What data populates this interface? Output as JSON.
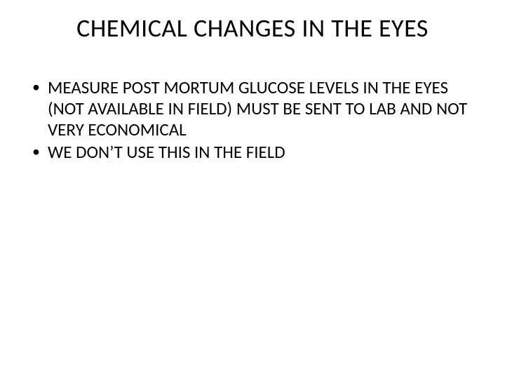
{
  "slide": {
    "title": "CHEMICAL CHANGES IN THE EYES",
    "bullets": [
      "MEASURE POST MORTUM GLUCOSE LEVELS IN THE EYES (NOT AVAILABLE IN FIELD) MUST BE SENT TO LAB AND NOT VERY ECONOMICAL",
      "WE DON’T USE THIS IN THE FIELD"
    ],
    "colors": {
      "background": "#ffffff",
      "text": "#000000"
    },
    "typography": {
      "title_fontsize": 36,
      "body_fontsize": 25,
      "font_family": "Calibri"
    }
  }
}
